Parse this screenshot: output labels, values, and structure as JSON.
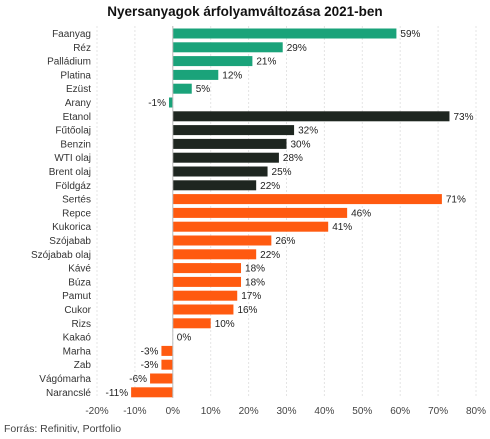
{
  "chart_data": {
    "type": "bar",
    "orientation": "horizontal",
    "title": "Nyersanyagok árfolyamváltozása 2021-ben",
    "categories": [
      "Faanyag",
      "Réz",
      "Palládium",
      "Platina",
      "Ezüst",
      "Arany",
      "Etanol",
      "Fűtőolaj",
      "Benzin",
      "WTI olaj",
      "Brent olaj",
      "Földgáz",
      "Sertés",
      "Repce",
      "Kukorica",
      "Szójabab",
      "Szójabab olaj",
      "Kávé",
      "Búza",
      "Pamut",
      "Cukor",
      "Rizs",
      "Kakaó",
      "Marha",
      "Zab",
      "Vágómarha",
      "Narancslé"
    ],
    "values": [
      59,
      29,
      21,
      12,
      5,
      -1,
      73,
      32,
      30,
      28,
      25,
      22,
      71,
      46,
      41,
      26,
      22,
      18,
      18,
      17,
      16,
      10,
      0,
      -3,
      -3,
      -6,
      -11
    ],
    "value_labels": [
      "59%",
      "29%",
      "21%",
      "12%",
      "5%",
      "-1%",
      "73%",
      "32%",
      "30%",
      "28%",
      "25%",
      "22%",
      "71%",
      "46%",
      "41%",
      "26%",
      "22%",
      "18%",
      "18%",
      "17%",
      "16%",
      "10%",
      "0%",
      "-3%",
      "-3%",
      "-6%",
      "-11%"
    ],
    "groups": [
      {
        "color": "#1aa37a",
        "count": 6
      },
      {
        "color": "#1e2620",
        "count": 6
      },
      {
        "color": "#ff5a10",
        "count": 15
      }
    ],
    "xlim": [
      -20,
      80
    ],
    "x_ticks": [
      -20,
      -10,
      0,
      10,
      20,
      30,
      40,
      50,
      60,
      70,
      80
    ],
    "x_tick_labels": [
      "-20%",
      "-10%",
      "0%",
      "10%",
      "20%",
      "30%",
      "40%",
      "50%",
      "60%",
      "70%",
      "80%"
    ],
    "grid": true,
    "xlabel": "",
    "ylabel": ""
  },
  "source": "Forrás: Refinitiv, Portfolio"
}
